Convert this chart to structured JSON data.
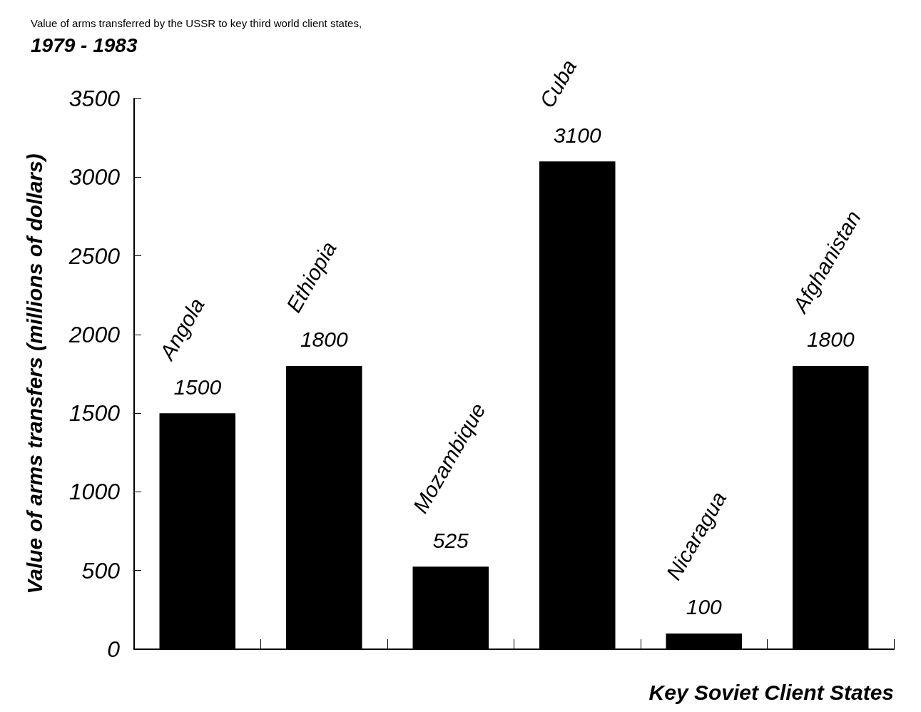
{
  "chart_data": {
    "type": "bar",
    "title": "Value of arms transferred by the USSR to key third world client states,",
    "subtitle": "1979 - 1983",
    "xlabel": "Key Soviet Client States",
    "ylabel": "Value of arms transfers (millions of dollars)",
    "categories": [
      "Angola",
      "Ethiopia",
      "Mozambique",
      "Cuba",
      "Nicaragua",
      "Afghanistan"
    ],
    "values": [
      1500,
      1800,
      525,
      3100,
      100,
      1800
    ],
    "color": "#000000",
    "ylim": [
      0,
      3500
    ],
    "yticks": [
      0,
      500,
      1000,
      1500,
      2000,
      2500,
      3000,
      3500
    ],
    "grid": false,
    "data_labels": true
  }
}
